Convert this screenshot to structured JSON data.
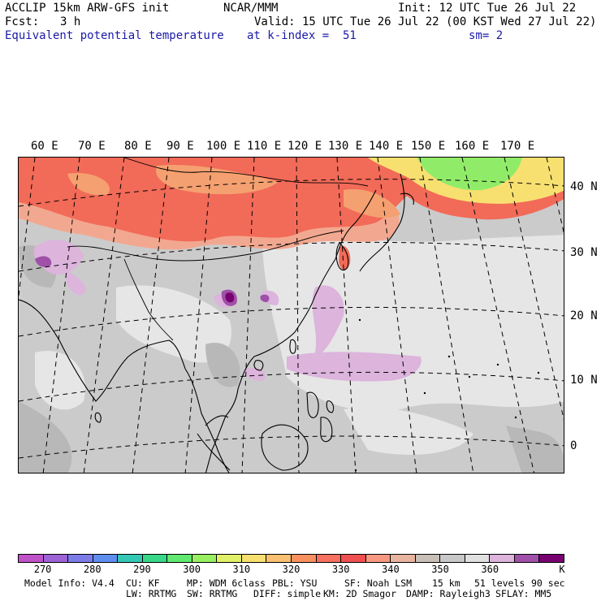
{
  "header": {
    "title": "ACCLIP 15km ARW-GFS init",
    "center": "NCAR/MMM",
    "init": "Init: 12 UTC Tue 26 Jul 22",
    "fcst_label": "Fcst:",
    "fcst_value": "3 h",
    "valid": "Valid: 15 UTC Tue 26 Jul 22 (00 KST Wed 27 Jul 22)",
    "field": "Equivalent potential temperature",
    "level": "at k-index =  51",
    "smoothing": "sm= 2"
  },
  "map": {
    "lon_labels": [
      "60 E",
      "70 E",
      "80 E",
      "90 E",
      "100 E",
      "110 E",
      "120 E",
      "130 E",
      "140 E",
      "150 E",
      "160 E",
      "170 E"
    ],
    "lat_labels": [
      "40 N",
      "30 N",
      "20 N",
      "10 N",
      "0"
    ]
  },
  "colorbar": {
    "colors": [
      "#c052c8",
      "#9d62d6",
      "#7c7ce8",
      "#5e8ef0",
      "#34c8b4",
      "#38d888",
      "#60e870",
      "#98f060",
      "#e0f068",
      "#f8e070",
      "#f8c070",
      "#f89060",
      "#f87060",
      "#f05050",
      "#f89880",
      "#e8b4a0",
      "#c8c0b8",
      "#c8c8c8",
      "#e0e0e0",
      "#dcb4dc",
      "#a050a8",
      "#780070"
    ],
    "labels": [
      "270",
      "280",
      "290",
      "300",
      "310",
      "320",
      "330",
      "340",
      "350",
      "360"
    ],
    "unit": "K"
  },
  "footer": {
    "model_info": "Model Info: V4.4",
    "cu": "CU: KF",
    "mp": "MP: WDM 6class",
    "pbl": "PBL: YSU",
    "sf": "SF: Noah LSM",
    "res": "15 km",
    "levels": "51 levels",
    "dt": "90 sec",
    "lw": "LW: RRTMG",
    "sw": "SW: RRTMG",
    "diff": "DIFF: simple",
    "km": "KM: 2D Smagor",
    "damp": "DAMP: Rayleigh3",
    "sflay": "SFLAY: MM5"
  }
}
